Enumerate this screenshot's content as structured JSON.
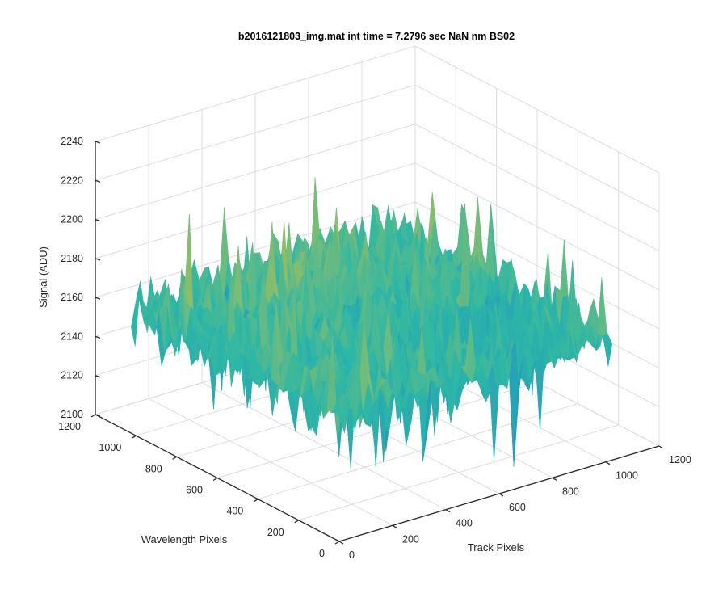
{
  "window": {
    "background": "#ffffff"
  },
  "chart_data": {
    "type": "surface",
    "title": "b2016121803_img.mat int time = 7.2796 sec  NaN nm BS02",
    "xlabel": "Track Pixels",
    "ylabel": "Wavelength Pixels",
    "zlabel": "Signal (ADU)",
    "xlim": [
      0,
      1200
    ],
    "ylim": [
      0,
      1200
    ],
    "zlim": [
      2100,
      2240
    ],
    "x_ticks": [
      0,
      200,
      400,
      600,
      800,
      1000,
      1200
    ],
    "y_ticks": [
      0,
      200,
      400,
      600,
      800,
      1000,
      1200
    ],
    "z_ticks": [
      2100,
      2120,
      2140,
      2160,
      2180,
      2200,
      2220,
      2240
    ],
    "x_tick_labels": [
      "0",
      "200",
      "400",
      "600",
      "800",
      "1000",
      "1200"
    ],
    "y_tick_labels": [
      "0",
      "200",
      "400",
      "600",
      "800",
      "1000",
      "1200"
    ],
    "z_tick_labels": [
      "2100",
      "2120",
      "2140",
      "2160",
      "2180",
      "2200",
      "2220",
      "2240"
    ],
    "data_extent": {
      "x": [
        0,
        1024
      ],
      "y": [
        0,
        1024
      ]
    },
    "signal_summary": {
      "mean": 2163,
      "min": 2110,
      "max": 2225
    },
    "grid": true,
    "colormap": "parula",
    "colors": {
      "low": "#1f7fd4",
      "mid": "#2cb7a6",
      "high": "#e6c233"
    }
  }
}
